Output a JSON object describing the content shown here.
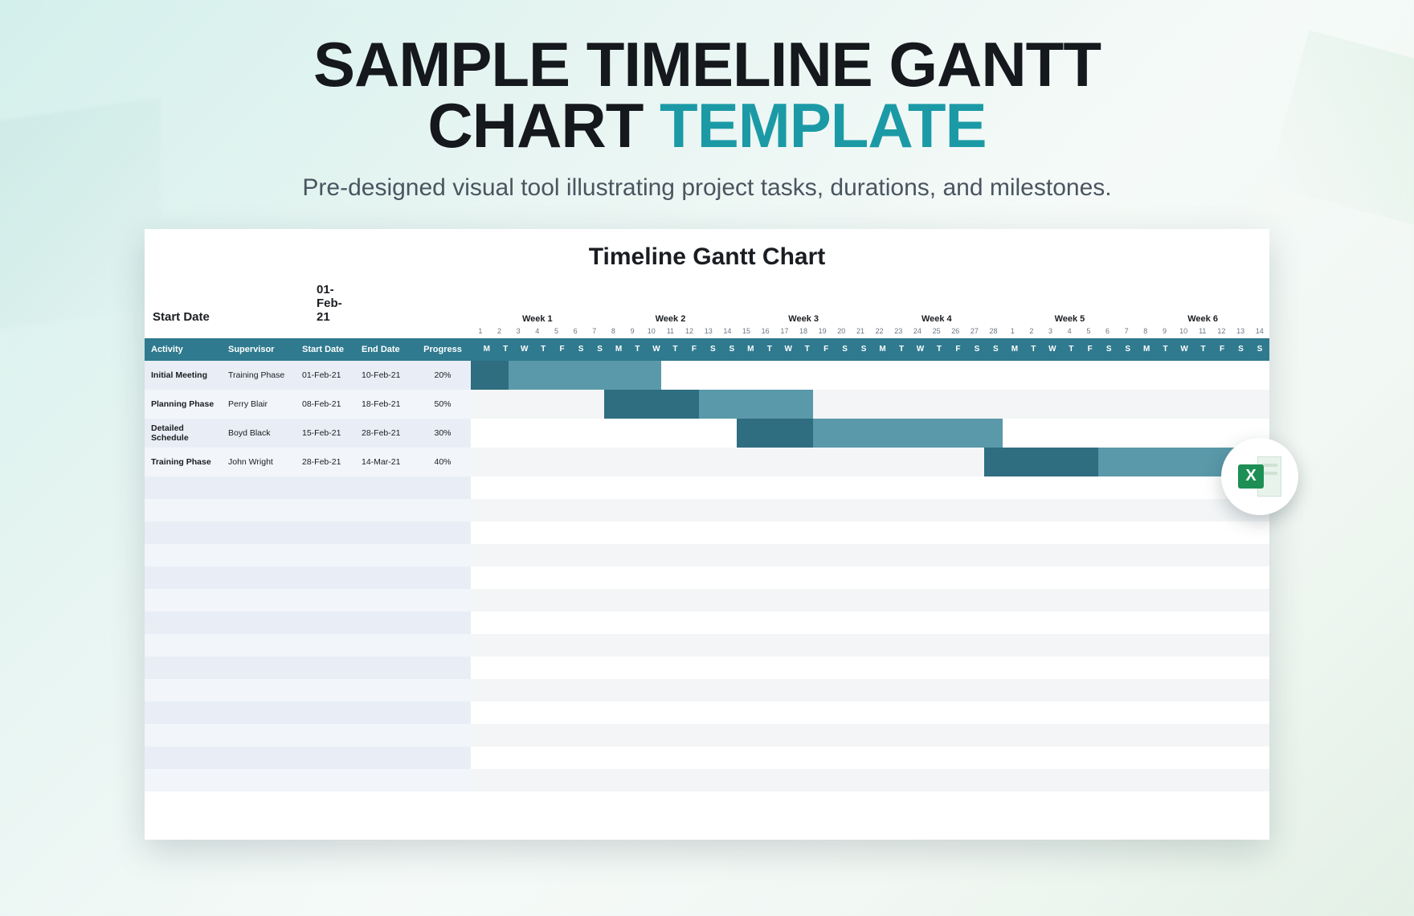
{
  "hero": {
    "title_line1": "SAMPLE TIMELINE GANTT",
    "title_line2_a": "CHART ",
    "title_line2_b": "TEMPLATE",
    "subtitle": "Pre-designed visual tool illustrating project tasks, durations, and milestones."
  },
  "sheet": {
    "title": "Timeline Gantt Chart",
    "start_label": "Start Date",
    "start_value": "01-Feb-21",
    "columns": {
      "activity": "Activity",
      "supervisor": "Supervisor",
      "start": "Start Date",
      "end": "End Date",
      "progress": "Progress"
    }
  },
  "colors": {
    "header_bg": "#2f7a8f",
    "header_fg": "#ffffff",
    "row_alt_left_a": "#e9eef6",
    "row_alt_left_b": "#f2f5fa",
    "row_alt_tl_a": "#ffffff",
    "row_alt_tl_b": "#f3f5f6",
    "bar_done": "#2f6d80",
    "bar_rest": "#5a99a9",
    "text": "#1a1d21",
    "muted": "#6b7680",
    "accent": "#1b9aa6"
  },
  "timeline": {
    "total_days": 42,
    "weeks": [
      "Week 1",
      "Week 2",
      "Week 3",
      "Week 4",
      "Week 5",
      "Week 6"
    ],
    "day_numbers": [
      1,
      2,
      3,
      4,
      5,
      6,
      7,
      8,
      9,
      10,
      11,
      12,
      13,
      14,
      15,
      16,
      17,
      18,
      19,
      20,
      21,
      22,
      23,
      24,
      25,
      26,
      27,
      28,
      1,
      2,
      3,
      4,
      5,
      6,
      7,
      8,
      9,
      10,
      11,
      12,
      13,
      14
    ],
    "dow": [
      "M",
      "T",
      "W",
      "T",
      "F",
      "S",
      "S",
      "M",
      "T",
      "W",
      "T",
      "F",
      "S",
      "S",
      "M",
      "T",
      "W",
      "T",
      "F",
      "S",
      "S",
      "M",
      "T",
      "W",
      "T",
      "F",
      "S",
      "S",
      "M",
      "T",
      "W",
      "T",
      "F",
      "S",
      "S",
      "M",
      "T",
      "W",
      "T",
      "F",
      "S",
      "S"
    ]
  },
  "rows": [
    {
      "activity": "Initial Meeting",
      "supervisor": "Training Phase",
      "start": "01-Feb-21",
      "end": "10-Feb-21",
      "progress": "20%",
      "bar_start_day": 1,
      "bar_length": 10,
      "done_days": 2
    },
    {
      "activity": "Planning Phase",
      "supervisor": "Perry Blair",
      "start": "08-Feb-21",
      "end": "18-Feb-21",
      "progress": "50%",
      "bar_start_day": 8,
      "bar_length": 11,
      "done_days": 5
    },
    {
      "activity": "Detailed Schedule",
      "supervisor": "Boyd Black",
      "start": "15-Feb-21",
      "end": "28-Feb-21",
      "progress": "30%",
      "bar_start_day": 15,
      "bar_length": 14,
      "done_days": 4
    },
    {
      "activity": "Training Phase",
      "supervisor": "John Wright",
      "start": "28-Feb-21",
      "end": "14-Mar-21",
      "progress": "40%",
      "bar_start_day": 28,
      "bar_length": 15,
      "done_days": 6
    }
  ],
  "empty_rows": 14,
  "badge": {
    "letter": "X"
  }
}
